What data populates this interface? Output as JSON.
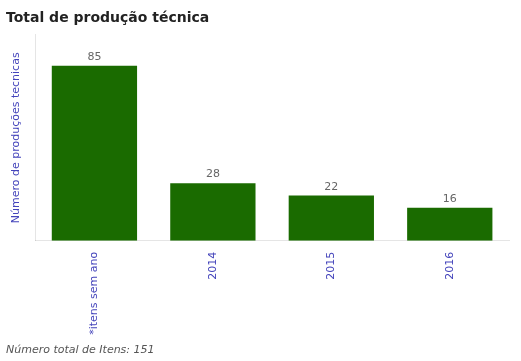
{
  "chart_data": {
    "type": "bar",
    "title": "Total de produção técnica",
    "y_label": "Número de produções tecnicas",
    "annotations": [
      "Número total de Itens: 151"
    ],
    "categories": [
      "*itens sem ano",
      "2014",
      "2015",
      "2016"
    ],
    "values": [
      85,
      28,
      22,
      16
    ],
    "color": "#1a6b00",
    "ylim": [
      0,
      100
    ],
    "grid": false,
    "data_labels": true,
    "tick_labels": "x"
  }
}
